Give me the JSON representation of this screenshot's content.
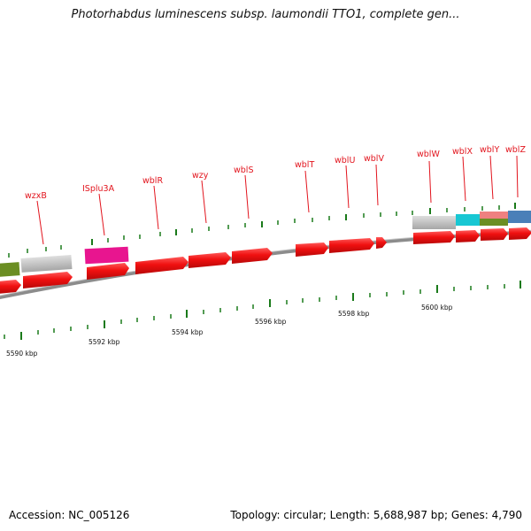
{
  "title": "Photorhabdus luminescens subsp. laumondii TTO1, complete gen...",
  "footer": {
    "accession": "Accession: NC_005126",
    "summary": "Topology: circular; Length: 5,688,987 bp; Genes: 4,790"
  },
  "colors": {
    "gene_label": "#e2141d",
    "cds": "#f01010",
    "tick": "#1a7a1a",
    "backbone": "#8c8c8c"
  },
  "kbp_labels": [
    "5590 kbp",
    "5592 kbp",
    "5594 kbp",
    "5596 kbp",
    "5598 kbp",
    "5600 kbp"
  ],
  "gene_labels": [
    "wzxB",
    "ISplu3A",
    "wblR",
    "wzy",
    "wblS",
    "wblT",
    "wblU",
    "wblV",
    "wblW",
    "wblX",
    "wblY",
    "wblZ"
  ]
}
